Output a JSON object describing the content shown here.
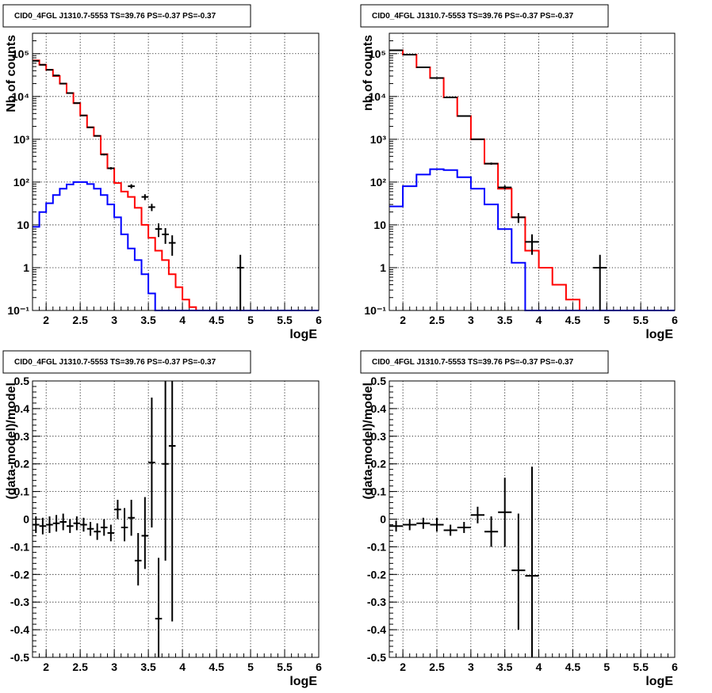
{
  "colors": {
    "total_model": "#ff0000",
    "source_model": "#0000ff",
    "data": "#000000"
  },
  "chart_data": [
    {
      "type": "line",
      "title": "CID0_4FGL J1310.7-5553 TS=39.76 PS=-0.37 PS=-0.37",
      "xlabel": "logE",
      "ylabel": "Nb of counts",
      "xlim": [
        1.8,
        6.0
      ],
      "ylim": [
        0.1,
        300000
      ],
      "yscale": "log",
      "grid": true,
      "x_ticks": [
        "2",
        "2.5",
        "3",
        "3.5",
        "4",
        "4.5",
        "5",
        "5.5",
        "6"
      ],
      "y_ticks": [
        "10⁻¹",
        "1",
        "10",
        "10²",
        "10³",
        "10⁴",
        "10⁵"
      ],
      "bin_edges": [
        1.8,
        1.9,
        2.0,
        2.1,
        2.2,
        2.3,
        2.4,
        2.5,
        2.6,
        2.7,
        2.8,
        2.9,
        3.0,
        3.1,
        3.2,
        3.3,
        3.4,
        3.5,
        3.6,
        3.7,
        3.8,
        3.9,
        4.0,
        4.1,
        4.2,
        4.3,
        4.4,
        4.5,
        4.6,
        4.7,
        4.8,
        4.9,
        5.0,
        5.1,
        5.2,
        5.3,
        5.4,
        5.5,
        5.6,
        5.7,
        5.8,
        5.9,
        6.0
      ],
      "series": [
        {
          "color": "#ff0000",
          "style": "step",
          "values": [
            70000,
            55000,
            42000,
            30000,
            20000,
            12000,
            7000,
            3600,
            1900,
            1200,
            450,
            210,
            95,
            60,
            45,
            25,
            10,
            5,
            2.5,
            1.5,
            0.7,
            0.35,
            0.18,
            0.12,
            0.1,
            0.1,
            0.1,
            0.1,
            0.1,
            0.1,
            0.1,
            0.1,
            0.1,
            0.1,
            0.1,
            0.1,
            0.1,
            0.1,
            0.1,
            0.1,
            0.1,
            0.1
          ]
        },
        {
          "color": "#0000ff",
          "style": "step",
          "values": [
            9,
            20,
            32,
            50,
            70,
            88,
            100,
            100,
            90,
            70,
            50,
            30,
            15,
            6,
            2.8,
            1.5,
            0.7,
            0.25,
            0.1,
            0.1,
            0.1,
            0.1,
            0.1,
            0.1,
            0.1,
            0.1,
            0.1,
            0.1,
            0.1,
            0.1,
            0.1,
            0.1,
            0.1,
            0.1,
            0.1,
            0.1,
            0.1,
            0.1,
            0.1,
            0.1,
            0.1,
            0.1
          ]
        },
        {
          "color": "#000000",
          "style": "errorbar",
          "points": [
            {
              "x": 1.85,
              "y": 68000,
              "xerr": 0.05,
              "ylo": 67500,
              "yhi": 68500
            },
            {
              "x": 1.95,
              "y": 55000,
              "xerr": 0.05,
              "ylo": 54500,
              "yhi": 55500
            },
            {
              "x": 2.05,
              "y": 42000,
              "xerr": 0.05,
              "ylo": 41600,
              "yhi": 42400
            },
            {
              "x": 2.15,
              "y": 31000,
              "xerr": 0.05,
              "ylo": 30600,
              "yhi": 31400
            },
            {
              "x": 2.25,
              "y": 20000,
              "xerr": 0.05,
              "ylo": 19700,
              "yhi": 20300
            },
            {
              "x": 2.35,
              "y": 12000,
              "xerr": 0.05,
              "ylo": 11800,
              "yhi": 12200
            },
            {
              "x": 2.45,
              "y": 7000,
              "xerr": 0.05,
              "ylo": 6900,
              "yhi": 7100
            },
            {
              "x": 2.55,
              "y": 3600,
              "xerr": 0.05,
              "ylo": 3540,
              "yhi": 3660
            },
            {
              "x": 2.65,
              "y": 1900,
              "xerr": 0.05,
              "ylo": 1860,
              "yhi": 1940
            },
            {
              "x": 2.75,
              "y": 1200,
              "xerr": 0.05,
              "ylo": 1165,
              "yhi": 1235
            },
            {
              "x": 2.85,
              "y": 440,
              "xerr": 0.05,
              "ylo": 420,
              "yhi": 460
            },
            {
              "x": 2.95,
              "y": 210,
              "xerr": 0.05,
              "ylo": 196,
              "yhi": 224
            },
            {
              "x": 3.25,
              "y": 80,
              "xerr": 0.05,
              "ylo": 71,
              "yhi": 89
            },
            {
              "x": 3.45,
              "y": 45,
              "xerr": 0.05,
              "ylo": 38,
              "yhi": 52
            },
            {
              "x": 3.55,
              "y": 26,
              "xerr": 0.05,
              "ylo": 21,
              "yhi": 31
            },
            {
              "x": 3.65,
              "y": 8,
              "xerr": 0.05,
              "ylo": 5.2,
              "yhi": 10.8
            },
            {
              "x": 3.75,
              "y": 6,
              "xerr": 0.05,
              "ylo": 3.6,
              "yhi": 8.4
            },
            {
              "x": 3.85,
              "y": 3.8,
              "xerr": 0.05,
              "ylo": 1.9,
              "yhi": 5.7
            },
            {
              "x": 4.85,
              "y": 1,
              "xerr": 0.05,
              "ylo": 0.1,
              "yhi": 2.0
            }
          ]
        }
      ]
    },
    {
      "type": "line",
      "title": "CID0_4FGL J1310.7-5553 TS=39.76 PS=-0.37 PS=-0.37",
      "xlabel": "logE",
      "ylabel": "nb of counts",
      "xlim": [
        1.8,
        6.0
      ],
      "ylim": [
        0.1,
        300000
      ],
      "yscale": "log",
      "grid": true,
      "x_ticks": [
        "2",
        "2.5",
        "3",
        "3.5",
        "4",
        "4.5",
        "5",
        "5.5",
        "6"
      ],
      "y_ticks": [
        "10⁻¹",
        "1",
        "10",
        "10²",
        "10³",
        "10⁴",
        "10⁵"
      ],
      "bin_edges": [
        1.8,
        2.0,
        2.2,
        2.4,
        2.6,
        2.8,
        3.0,
        3.2,
        3.4,
        3.6,
        3.8,
        4.0,
        4.2,
        4.4,
        4.6,
        4.8,
        5.0,
        5.2,
        5.4,
        5.6,
        5.8,
        6.0
      ],
      "series": [
        {
          "color": "#ff0000",
          "style": "step",
          "values": [
            120000,
            95000,
            48000,
            27000,
            9500,
            3500,
            1000,
            270,
            70,
            15,
            2.5,
            1,
            0.4,
            0.18,
            0.1,
            0.1,
            0.1,
            0.1,
            0.1,
            0.1,
            0.1
          ]
        },
        {
          "color": "#0000ff",
          "style": "step",
          "values": [
            27,
            80,
            150,
            200,
            190,
            130,
            70,
            30,
            8,
            1.3,
            0.1,
            0.1,
            0.1,
            0.1,
            0.1,
            0.1,
            0.1,
            0.1,
            0.1,
            0.1,
            0.1
          ]
        },
        {
          "color": "#000000",
          "style": "errorbar",
          "points": [
            {
              "x": 1.9,
              "y": 120000,
              "xerr": 0.1,
              "ylo": 119600,
              "yhi": 120400
            },
            {
              "x": 2.1,
              "y": 95000,
              "xerr": 0.1,
              "ylo": 94700,
              "yhi": 95300
            },
            {
              "x": 2.3,
              "y": 48000,
              "xerr": 0.1,
              "ylo": 47800,
              "yhi": 48200
            },
            {
              "x": 2.5,
              "y": 27000,
              "xerr": 0.1,
              "ylo": 26800,
              "yhi": 27200
            },
            {
              "x": 2.7,
              "y": 9500,
              "xerr": 0.1,
              "ylo": 9400,
              "yhi": 9600
            },
            {
              "x": 2.9,
              "y": 3500,
              "xerr": 0.1,
              "ylo": 3440,
              "yhi": 3560
            },
            {
              "x": 3.1,
              "y": 1000,
              "xerr": 0.1,
              "ylo": 970,
              "yhi": 1030
            },
            {
              "x": 3.3,
              "y": 270,
              "xerr": 0.1,
              "ylo": 254,
              "yhi": 286
            },
            {
              "x": 3.5,
              "y": 75,
              "xerr": 0.1,
              "ylo": 67,
              "yhi": 83
            },
            {
              "x": 3.7,
              "y": 15,
              "xerr": 0.1,
              "ylo": 11.1,
              "yhi": 18.9
            },
            {
              "x": 3.9,
              "y": 4,
              "xerr": 0.1,
              "ylo": 2,
              "yhi": 6
            },
            {
              "x": 4.9,
              "y": 1,
              "xerr": 0.1,
              "ylo": 0.1,
              "yhi": 2
            }
          ]
        }
      ]
    },
    {
      "type": "scatter",
      "title": "CID0_4FGL J1310.7-5553 TS=39.76 PS=-0.37 PS=-0.37",
      "xlabel": "logE",
      "ylabel": "(data-model)/model",
      "xlim": [
        1.8,
        6.0
      ],
      "ylim": [
        -0.5,
        0.5
      ],
      "grid": true,
      "x_ticks": [
        "2",
        "2.5",
        "3",
        "3.5",
        "4",
        "4.5",
        "5",
        "5.5",
        "6"
      ],
      "y_ticks": [
        "-0.5",
        "-0.4",
        "-0.3",
        "-0.2",
        "-0.1",
        "0",
        "0.1",
        "0.2",
        "0.3",
        "0.4",
        "0.5"
      ],
      "points": [
        {
          "x": 1.85,
          "y": -0.02,
          "xerr": 0.05,
          "ylo": -0.05,
          "yhi": 0.01
        },
        {
          "x": 1.95,
          "y": -0.025,
          "xerr": 0.05,
          "ylo": -0.055,
          "yhi": 0.005
        },
        {
          "x": 2.05,
          "y": -0.02,
          "xerr": 0.05,
          "ylo": -0.05,
          "yhi": 0.01
        },
        {
          "x": 2.15,
          "y": -0.015,
          "xerr": 0.05,
          "ylo": -0.045,
          "yhi": 0.015
        },
        {
          "x": 2.25,
          "y": -0.01,
          "xerr": 0.05,
          "ylo": -0.04,
          "yhi": 0.02
        },
        {
          "x": 2.35,
          "y": -0.025,
          "xerr": 0.05,
          "ylo": -0.05,
          "yhi": 0.0
        },
        {
          "x": 2.45,
          "y": -0.015,
          "xerr": 0.05,
          "ylo": -0.04,
          "yhi": 0.01
        },
        {
          "x": 2.55,
          "y": -0.02,
          "xerr": 0.05,
          "ylo": -0.045,
          "yhi": 0.005
        },
        {
          "x": 2.65,
          "y": -0.035,
          "xerr": 0.05,
          "ylo": -0.06,
          "yhi": -0.01
        },
        {
          "x": 2.75,
          "y": -0.045,
          "xerr": 0.05,
          "ylo": -0.075,
          "yhi": -0.015
        },
        {
          "x": 2.85,
          "y": -0.03,
          "xerr": 0.05,
          "ylo": -0.06,
          "yhi": 0.0
        },
        {
          "x": 2.95,
          "y": -0.05,
          "xerr": 0.05,
          "ylo": -0.08,
          "yhi": -0.02
        },
        {
          "x": 3.05,
          "y": 0.035,
          "xerr": 0.05,
          "ylo": 0.0,
          "yhi": 0.07
        },
        {
          "x": 3.15,
          "y": -0.03,
          "xerr": 0.05,
          "ylo": -0.08,
          "yhi": 0.04
        },
        {
          "x": 3.25,
          "y": 0.005,
          "xerr": 0.05,
          "ylo": -0.06,
          "yhi": 0.07
        },
        {
          "x": 3.35,
          "y": -0.15,
          "xerr": 0.05,
          "ylo": -0.24,
          "yhi": -0.05
        },
        {
          "x": 3.45,
          "y": -0.06,
          "xerr": 0.05,
          "ylo": -0.18,
          "yhi": 0.08
        },
        {
          "x": 3.55,
          "y": 0.205,
          "xerr": 0.05,
          "ylo": -0.03,
          "yhi": 0.44
        },
        {
          "x": 3.65,
          "y": -0.36,
          "xerr": 0.05,
          "ylo": -0.5,
          "yhi": -0.14
        },
        {
          "x": 3.75,
          "y": 0.2,
          "xerr": 0.05,
          "ylo": -0.15,
          "yhi": 0.5
        },
        {
          "x": 3.85,
          "y": 0.265,
          "xerr": 0.05,
          "ylo": -0.37,
          "yhi": 0.5
        }
      ]
    },
    {
      "type": "scatter",
      "title": "CID0_4FGL J1310.7-5553 TS=39.76 PS=-0.37 PS=-0.37",
      "xlabel": "logE",
      "ylabel": "(data-model)/model",
      "xlim": [
        1.8,
        6.0
      ],
      "ylim": [
        -0.5,
        0.5
      ],
      "grid": true,
      "x_ticks": [
        "2",
        "2.5",
        "3",
        "3.5",
        "4",
        "4.5",
        "5",
        "5.5",
        "6"
      ],
      "y_ticks": [
        "-0.5",
        "-0.4",
        "-0.3",
        "-0.2",
        "-0.1",
        "0",
        "0.1",
        "0.2",
        "0.3",
        "0.4",
        "0.5"
      ],
      "points": [
        {
          "x": 1.9,
          "y": -0.025,
          "xerr": 0.1,
          "ylo": -0.045,
          "yhi": -0.005
        },
        {
          "x": 2.1,
          "y": -0.02,
          "xerr": 0.1,
          "ylo": -0.04,
          "yhi": 0.0
        },
        {
          "x": 2.3,
          "y": -0.015,
          "xerr": 0.1,
          "ylo": -0.035,
          "yhi": 0.005
        },
        {
          "x": 2.5,
          "y": -0.02,
          "xerr": 0.1,
          "ylo": -0.045,
          "yhi": 0.005
        },
        {
          "x": 2.7,
          "y": -0.04,
          "xerr": 0.1,
          "ylo": -0.06,
          "yhi": -0.02
        },
        {
          "x": 2.9,
          "y": -0.03,
          "xerr": 0.1,
          "ylo": -0.05,
          "yhi": -0.01
        },
        {
          "x": 3.1,
          "y": 0.015,
          "xerr": 0.1,
          "ylo": -0.015,
          "yhi": 0.045
        },
        {
          "x": 3.3,
          "y": -0.045,
          "xerr": 0.1,
          "ylo": -0.1,
          "yhi": 0.01
        },
        {
          "x": 3.5,
          "y": 0.025,
          "xerr": 0.1,
          "ylo": -0.1,
          "yhi": 0.15
        },
        {
          "x": 3.7,
          "y": -0.185,
          "xerr": 0.1,
          "ylo": -0.4,
          "yhi": 0.02
        },
        {
          "x": 3.9,
          "y": -0.205,
          "xerr": 0.1,
          "ylo": -0.5,
          "yhi": 0.19
        }
      ]
    }
  ]
}
